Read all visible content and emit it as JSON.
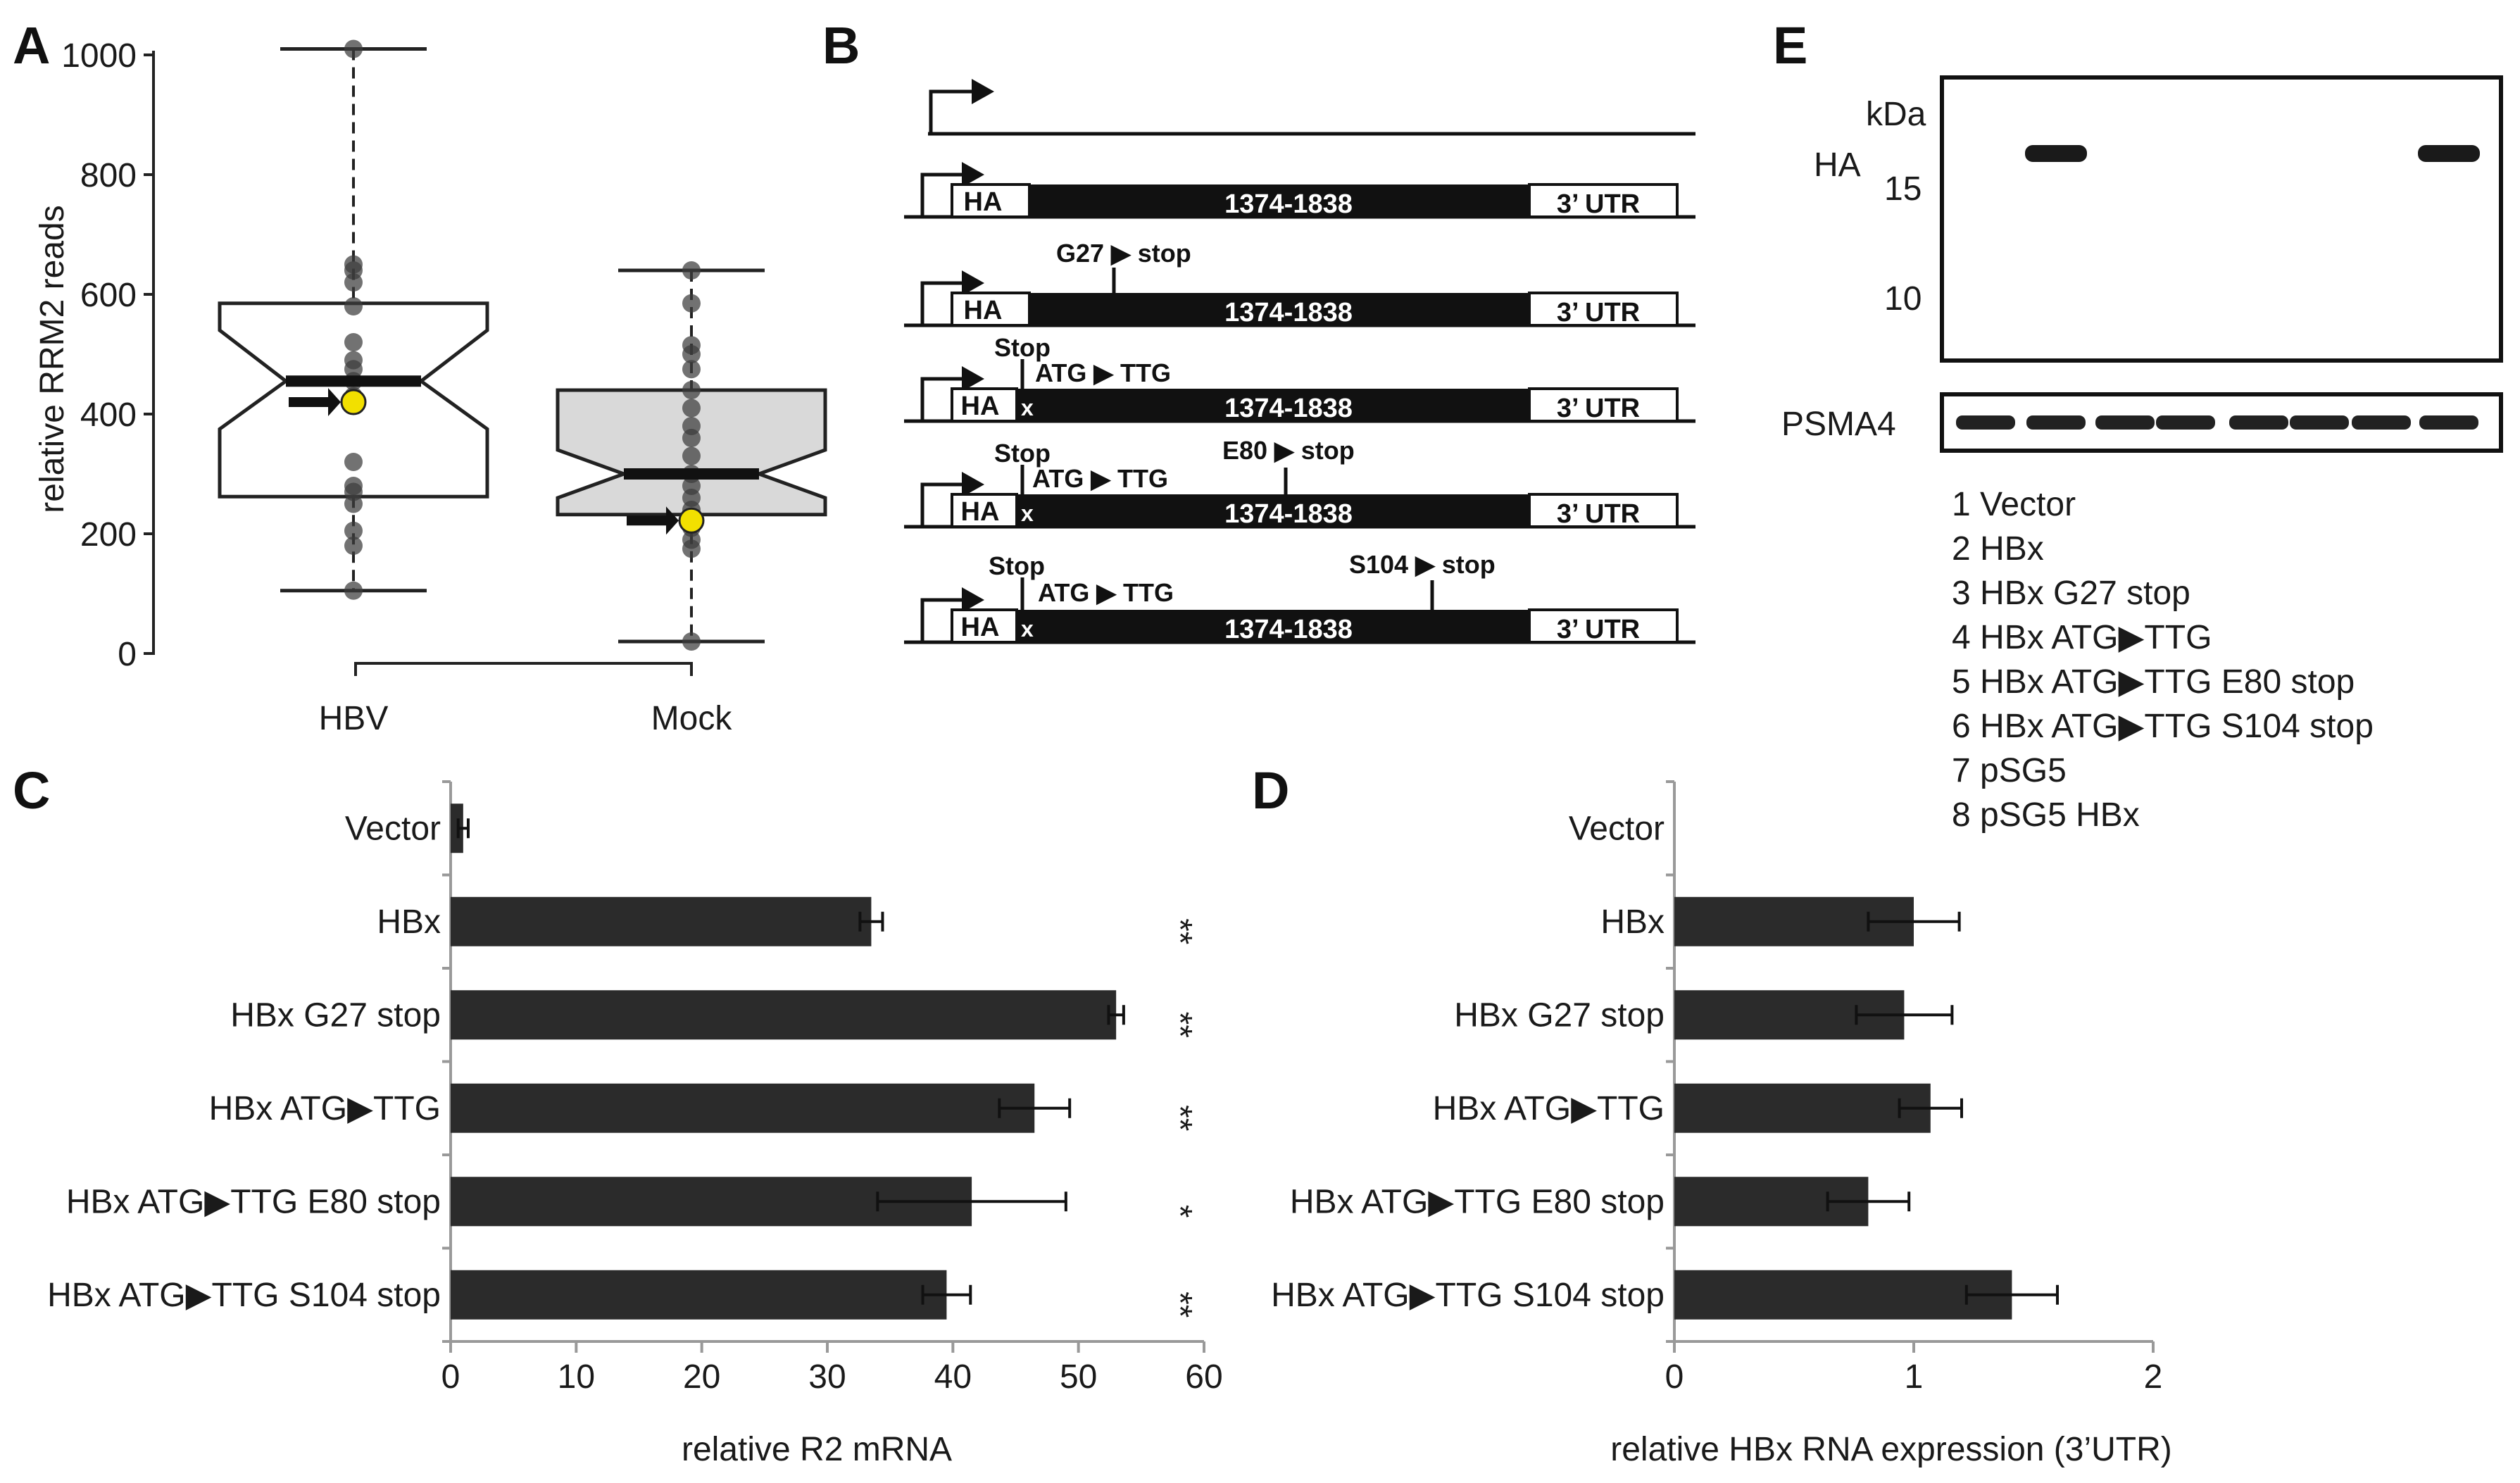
{
  "panel_labels": {
    "a": "A",
    "b": "B",
    "c": "C",
    "d": "D",
    "e": "E"
  },
  "chart_data": [
    {
      "panel": "A",
      "type": "box",
      "ylabel": "relative RRM2 reads",
      "ylim": [
        0,
        1000
      ],
      "yticks": [
        "0",
        "200",
        "400",
        "600",
        "800",
        "1000"
      ],
      "ytick_values": [
        0,
        200,
        400,
        600,
        800,
        1000
      ],
      "groups": [
        {
          "name": "HBV",
          "min": 105,
          "q1": 262,
          "median": 455,
          "q3": 585,
          "max": 1010,
          "notch_low": 375,
          "notch_high": 540,
          "highlight": 420,
          "fill": "#ffffff",
          "points": [
            105,
            180,
            205,
            250,
            270,
            280,
            320,
            420,
            430,
            455,
            475,
            490,
            520,
            580,
            620,
            640,
            650,
            1010
          ]
        },
        {
          "name": "Mock",
          "min": 20,
          "q1": 232,
          "median": 300,
          "q3": 440,
          "max": 640,
          "notch_low": 260,
          "notch_high": 340,
          "highlight": 222,
          "fill": "#d9d9d9",
          "points": [
            20,
            175,
            190,
            210,
            240,
            260,
            280,
            300,
            330,
            360,
            380,
            410,
            440,
            475,
            500,
            515,
            585,
            640
          ]
        }
      ]
    },
    {
      "panel": "C",
      "type": "bar",
      "orientation": "horizontal",
      "xlabel": "relative R2 mRNA",
      "xlim": [
        0,
        60
      ],
      "xticks": [
        "0",
        "10",
        "20",
        "30",
        "40",
        "50",
        "60"
      ],
      "xtick_values": [
        0,
        10,
        20,
        30,
        40,
        50,
        60
      ],
      "categories": [
        "Vector",
        "HBx",
        "HBx G27 stop",
        "HBx ATG▶TTG",
        "HBx ATG▶TTG E80 stop",
        "HBx ATG▶TTG S104 stop"
      ],
      "values": [
        1,
        33.5,
        53,
        46.5,
        41.5,
        39.5
      ],
      "errors": [
        0.4,
        0.9,
        0.6,
        2.8,
        7.5,
        1.9
      ],
      "significance": [
        "",
        "**",
        "**",
        "**",
        "*",
        "**"
      ]
    },
    {
      "panel": "D",
      "type": "bar",
      "orientation": "horizontal",
      "xlabel": "relative HBx RNA expression (3’UTR)",
      "xlim": [
        0,
        2
      ],
      "xticks": [
        "0",
        "1",
        "2"
      ],
      "xtick_values": [
        0,
        1,
        2
      ],
      "categories": [
        "Vector",
        "HBx",
        "HBx G27 stop",
        "HBx ATG▶TTG",
        "HBx ATG▶TTG E80 stop",
        "HBx ATG▶TTG S104 stop"
      ],
      "values": [
        0,
        1.0,
        0.96,
        1.07,
        0.81,
        1.41
      ],
      "errors": [
        0,
        0.19,
        0.2,
        0.13,
        0.17,
        0.19
      ]
    }
  ],
  "panel_b": {
    "region": "1374-1838",
    "ha": "HA",
    "utr": "3’ UTR",
    "stop_label": "Stop",
    "x_mark": "x",
    "g27": "G27 ▶ stop",
    "atg": "ATG ▶ TTG",
    "e80": "E80 ▶ stop",
    "s104": "S104 ▶ stop"
  },
  "panel_e": {
    "kda": "kDa",
    "lanes": [
      "1",
      "2",
      "3",
      "4",
      "5",
      "6",
      "7",
      "8"
    ],
    "ha_label": "HA",
    "markers": [
      "15",
      "10"
    ],
    "ha_band_lanes": [
      2,
      8
    ],
    "psma4_label": "PSMA4",
    "legend": [
      "1 Vector",
      "2 HBx",
      "3 HBx G27 stop",
      "4 HBx ATG▶TTG",
      "5 HBx ATG▶TTG E80 stop",
      "6 HBx ATG▶TTG S104 stop",
      "7 pSG5",
      "8 pSG5 HBx"
    ]
  }
}
